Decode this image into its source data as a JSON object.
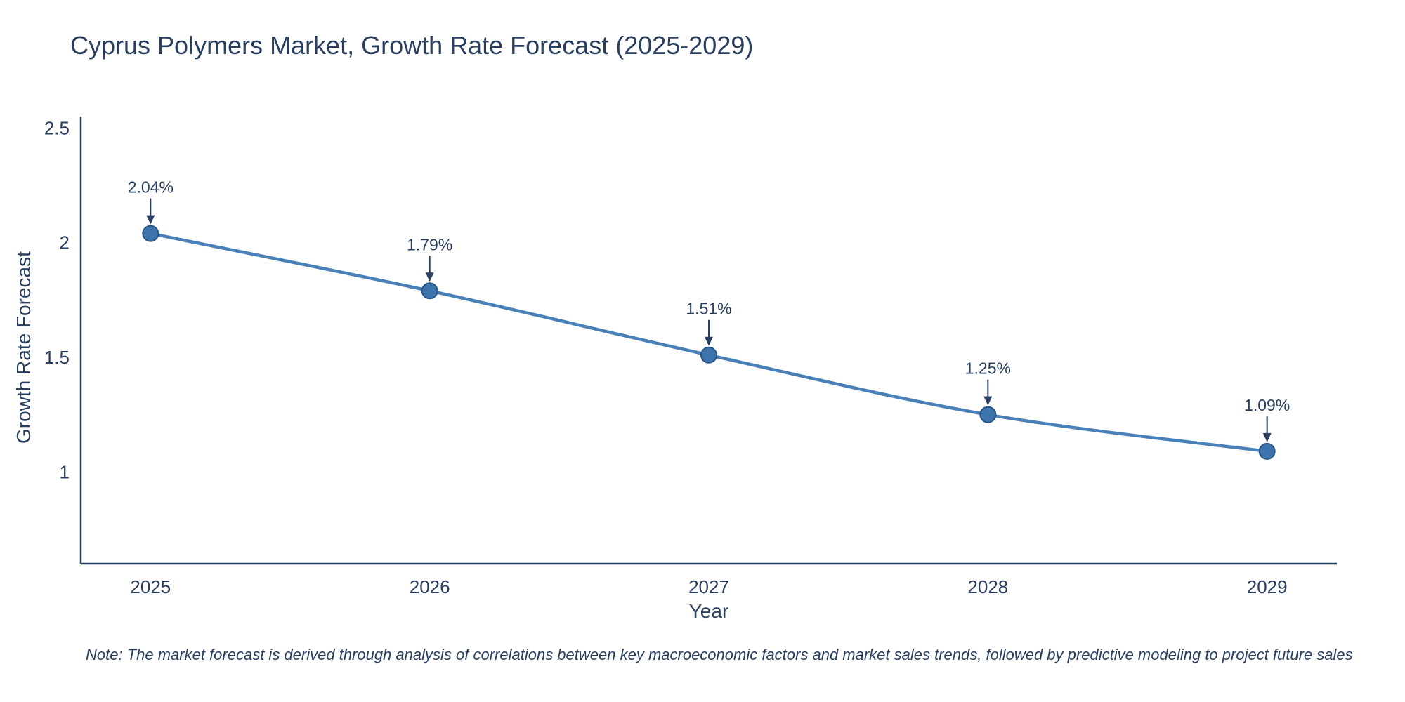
{
  "title": "Cyprus Polymers Market, Growth Rate Forecast (2025-2029)",
  "note": "Note: The market forecast is derived through analysis of correlations between key macroeconomic factors and market sales trends, followed by predictive modeling to project future sales",
  "chart_data": {
    "type": "line",
    "title": "Cyprus Polymers Market, Growth Rate Forecast (2025-2029)",
    "xlabel": "Year",
    "ylabel": "Growth Rate Forecast",
    "categories": [
      "2025",
      "2026",
      "2027",
      "2028",
      "2029"
    ],
    "values": [
      2.04,
      1.79,
      1.51,
      1.25,
      1.09
    ],
    "point_labels": [
      "2.04%",
      "1.79%",
      "1.51%",
      "1.25%",
      "1.09%"
    ],
    "x": [
      2025,
      2026,
      2027,
      2028,
      2029
    ],
    "xlim": [
      2024.75,
      2029.25
    ],
    "ylim": [
      0.6,
      2.55
    ],
    "yticks": [
      1,
      1.5,
      2,
      2.5
    ],
    "ytick_labels": [
      "1",
      "1.5",
      "2",
      "2.5"
    ],
    "grid": false,
    "legend": "none",
    "line_color": "#4a80b8",
    "marker_fill": "#3d74ad",
    "marker_edge": "#27568a",
    "axis_color": "#2a3f5f",
    "text_color": "#2a3f5f",
    "annotation_color": "#2a3f5f"
  }
}
